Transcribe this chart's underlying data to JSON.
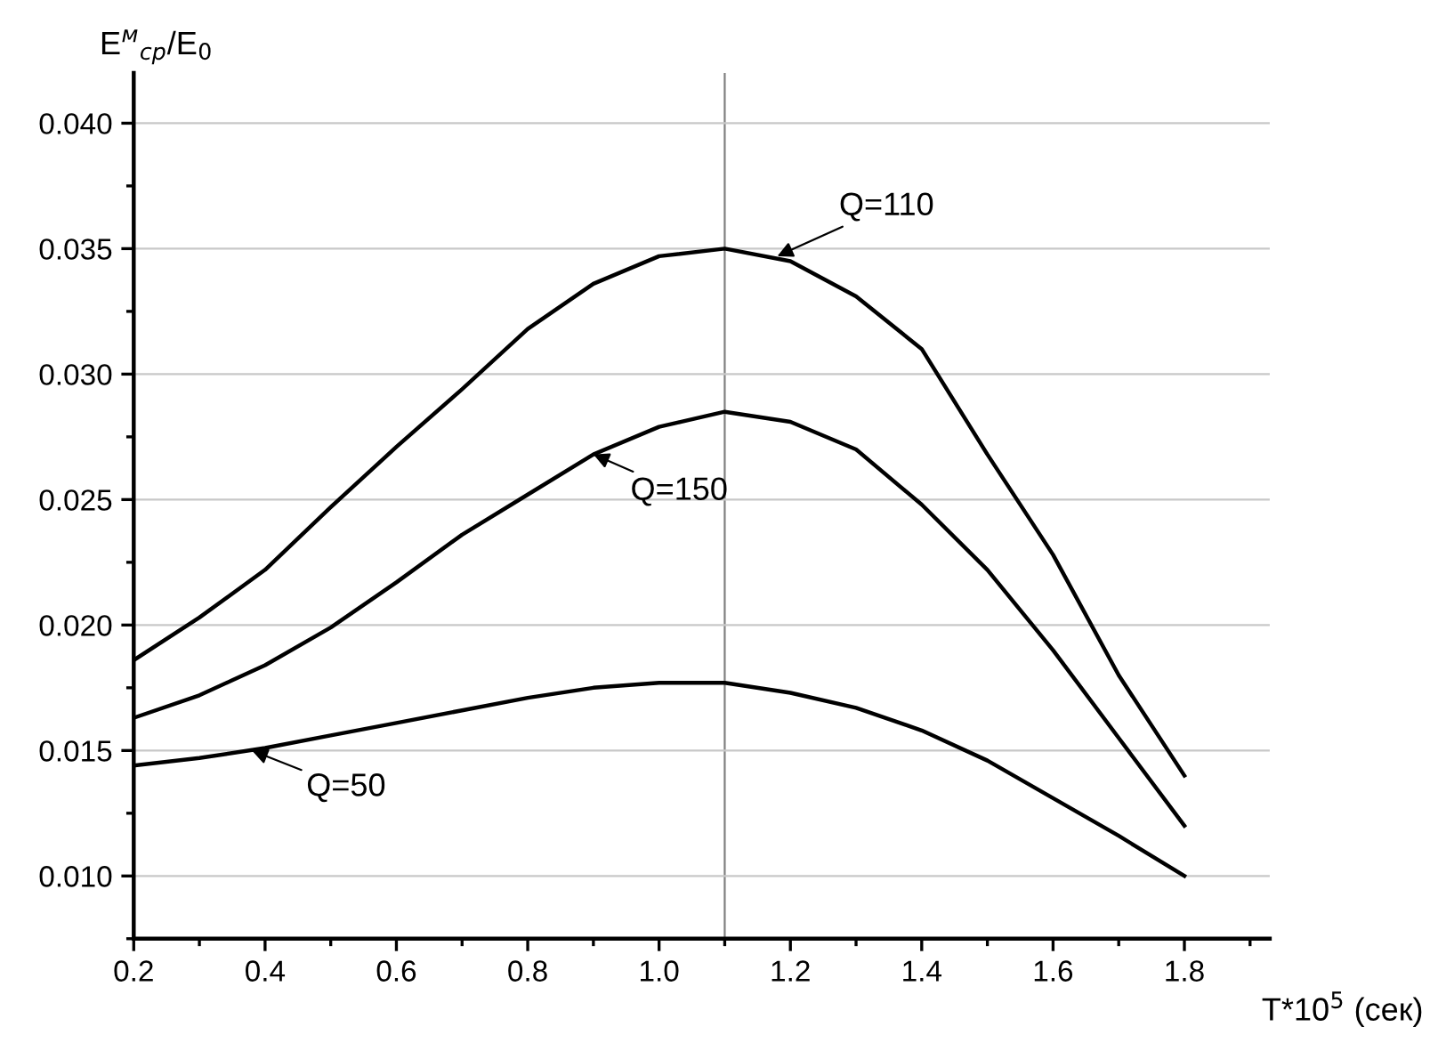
{
  "chart_data": {
    "type": "line",
    "xlabel": "T*10$^{5}$ (сек)",
    "ylabel": "E$^{м}$$_{ср}$/E$_{0}$",
    "x": [
      0.2,
      0.3,
      0.4,
      0.5,
      0.6,
      0.7,
      0.8,
      0.9,
      1.0,
      1.1,
      1.2,
      1.3,
      1.4,
      1.5,
      1.6,
      1.7,
      1.8
    ],
    "series": [
      {
        "color": "#000000",
        "values": [
          0.0186,
          0.0203,
          0.0222,
          0.0247,
          0.0271,
          0.0294,
          0.0318,
          0.0336,
          0.0347,
          0.035,
          0.0345,
          0.0331,
          0.031,
          0.0268,
          0.0228,
          0.018,
          0.014
        ]
      },
      {
        "color": "#000000",
        "values": [
          0.0163,
          0.0172,
          0.0184,
          0.0199,
          0.0217,
          0.0236,
          0.0252,
          0.0268,
          0.0279,
          0.0285,
          0.0281,
          0.027,
          0.0248,
          0.0222,
          0.019,
          0.0155,
          0.012
        ]
      },
      {
        "color": "#000000",
        "values": [
          0.0144,
          0.0147,
          0.0151,
          0.0156,
          0.0161,
          0.0166,
          0.0171,
          0.0175,
          0.0177,
          0.0177,
          0.0173,
          0.0167,
          0.0158,
          0.0146,
          0.0131,
          0.0116,
          0.01
        ]
      }
    ],
    "annotations": [
      {
        "text": "Q=110",
        "x": 1.18,
        "y": 0.0347
      },
      {
        "text": "Q=150",
        "x": 0.9,
        "y": 0.0268
      },
      {
        "text": "Q=50",
        "x": 0.38,
        "y": 0.015
      }
    ],
    "ref_lines": [
      {
        "axis": "x",
        "value": 1.1,
        "color": "#808080"
      }
    ],
    "xlim": [
      0.2,
      1.93
    ],
    "ylim": [
      0.0075,
      0.042
    ],
    "xticks": [
      0.2,
      0.4,
      0.6,
      0.8,
      {
        "value": 1.0,
        "label": "1.0"
      },
      1.2,
      1.4,
      1.6,
      1.8
    ],
    "yticks": [
      {
        "value": 0.01,
        "label": "0.010"
      },
      {
        "value": 0.015,
        "label": "0.015"
      },
      {
        "value": 0.02,
        "label": "0.020"
      },
      {
        "value": 0.025,
        "label": "0.025"
      },
      {
        "value": 0.03,
        "label": "0.030"
      },
      {
        "value": 0.035,
        "label": "0.035"
      },
      {
        "value": 0.04,
        "label": "0.040"
      }
    ],
    "grid": "y",
    "marker": "none",
    "line_style": "solid",
    "legend": false
  }
}
